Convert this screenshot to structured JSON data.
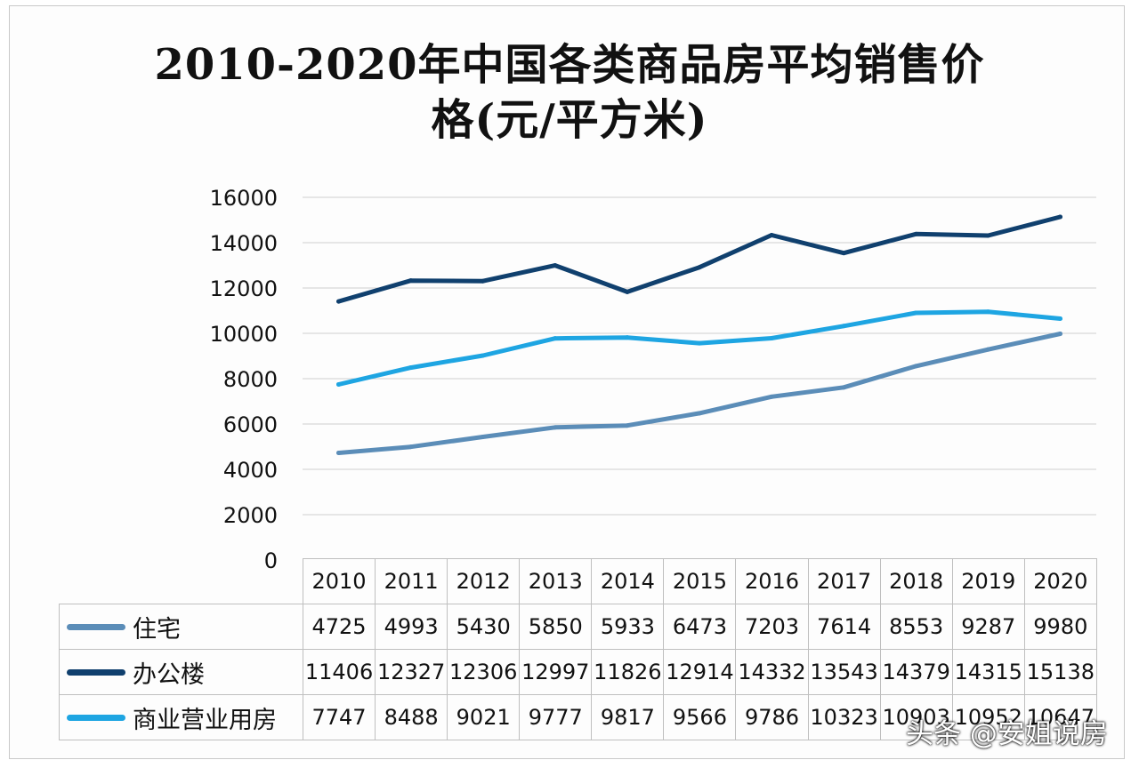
{
  "title": "2010-2020年中国各类商品房平均销售价格(元/平方米)",
  "watermark": "头条 @安姐说房",
  "chart_data": {
    "type": "line",
    "title": "2010-2020年中国各类商品房平均销售价格(元/平方米)",
    "xlabel": "",
    "ylabel": "",
    "ylim": [
      0,
      16000
    ],
    "yticks": [
      0,
      2000,
      4000,
      6000,
      8000,
      10000,
      12000,
      14000,
      16000
    ],
    "grid": true,
    "legend": "table-left",
    "categories": [
      "2010",
      "2011",
      "2012",
      "2013",
      "2014",
      "2015",
      "2016",
      "2017",
      "2018",
      "2019",
      "2020"
    ],
    "series": [
      {
        "name": "住宅",
        "color": "#5b8db8",
        "values": [
          4725,
          4993,
          5430,
          5850,
          5933,
          6473,
          7203,
          7614,
          8553,
          9287,
          9980
        ]
      },
      {
        "name": "办公楼",
        "color": "#10406e",
        "values": [
          11406,
          12327,
          12306,
          12997,
          11826,
          12914,
          14332,
          13543,
          14379,
          14315,
          15138
        ]
      },
      {
        "name": "商业营业用房",
        "color": "#1ea5e2",
        "values": [
          7747,
          8488,
          9021,
          9777,
          9817,
          9566,
          9786,
          10323,
          10903,
          10952,
          10647
        ]
      }
    ]
  }
}
